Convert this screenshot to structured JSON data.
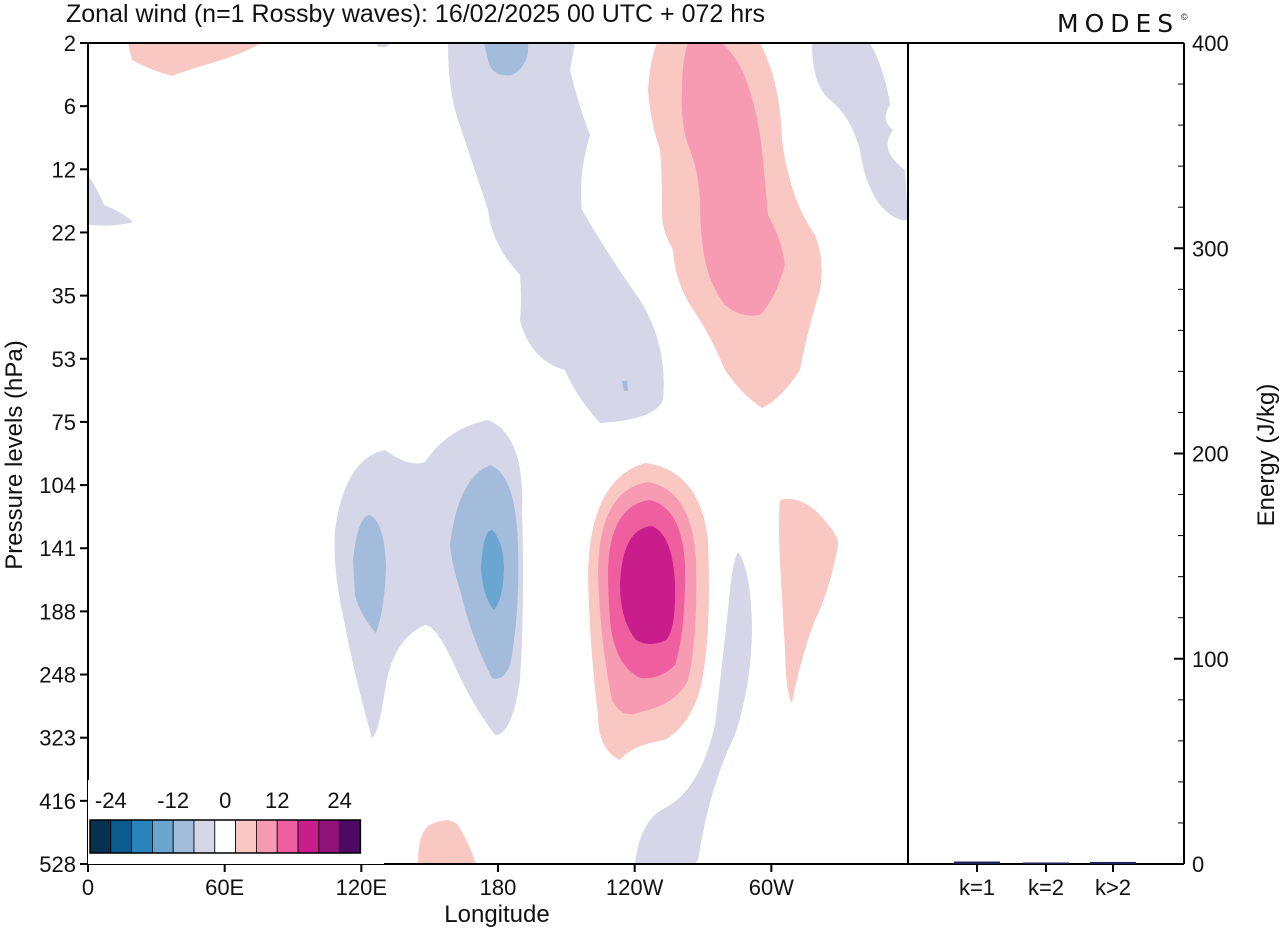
{
  "header": {
    "title": "Zonal wind (n=1 Rossby waves):  16/02/2025  00 UTC  + 072 hrs",
    "brand": "MODES",
    "brand_mark": "©"
  },
  "chart_data": [
    {
      "type": "heatmap",
      "xlabel": "Longitude",
      "ylabel": "Pressure levels (hPa)",
      "x_ticks": [
        "0",
        "60E",
        "120E",
        "180",
        "120W",
        "60W"
      ],
      "x_tick_values": [
        0,
        60,
        120,
        180,
        240,
        300
      ],
      "xlim": [
        0,
        360
      ],
      "y_levels": [
        "2",
        "6",
        "12",
        "22",
        "35",
        "53",
        "75",
        "104",
        "141",
        "188",
        "248",
        "323",
        "416",
        "528"
      ],
      "colorbar": {
        "tick_labels": [
          "-24",
          "-12",
          "0",
          "12",
          "24"
        ],
        "colors": [
          "#08304f",
          "#0b5c8e",
          "#2b85bd",
          "#6aa6cf",
          "#a3bcdb",
          "#d5d6e8",
          "#ffffff",
          "#f9c8c3",
          "#f79bb3",
          "#ef5fa0",
          "#c81d8a",
          "#92117a",
          "#4d0a64"
        ]
      },
      "features": [
        {
          "name": "upper-stratosphere easterly band",
          "sign": "negative",
          "level": -4,
          "lon_center": 200,
          "pressure_range": [
            "2",
            "75"
          ]
        },
        {
          "name": "upper-stratosphere westerly band",
          "sign": "positive",
          "level": 12,
          "lon_center": 265,
          "pressure_range": [
            "2",
            "75"
          ]
        },
        {
          "name": "upper-troposphere easterly pair",
          "sign": "negative",
          "level": -12,
          "lon_center": 170,
          "pressure_range": [
            "75",
            "323"
          ]
        },
        {
          "name": "upper-troposphere westerly core",
          "sign": "positive",
          "level": 20,
          "lon_center": 245,
          "pressure_range": [
            "104",
            "323"
          ]
        }
      ]
    },
    {
      "type": "bar",
      "ylabel": "Energy (J/kg)",
      "categories": [
        "k=1",
        "k=2",
        "k>2"
      ],
      "values": [
        1.2,
        0.4,
        1.0
      ],
      "ylim": [
        0,
        400
      ],
      "y_ticks": [
        "0",
        "100",
        "200",
        "300",
        "400"
      ],
      "bar_color": "#1b1f5c"
    }
  ]
}
